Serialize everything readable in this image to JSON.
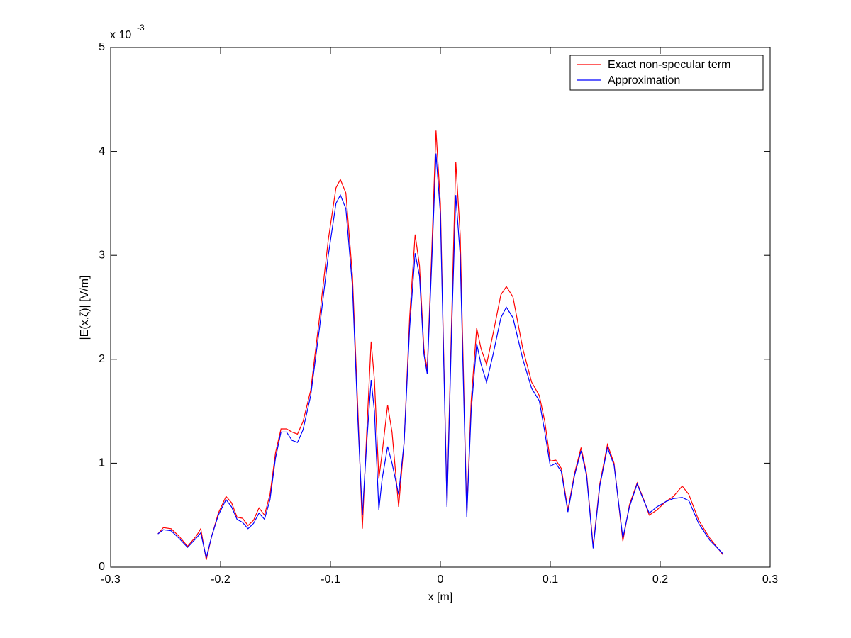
{
  "chart_data": {
    "type": "line",
    "xlabel": "x [m]",
    "ylabel": "|E(x,ζ)| [V/m]",
    "y_multiplier": "x 10",
    "y_exponent": "-3",
    "xlim": [
      -0.3,
      0.3
    ],
    "xticks": [
      -0.3,
      -0.2,
      -0.1,
      0,
      0.1,
      0.2,
      0.3
    ],
    "ylim": [
      0,
      5
    ],
    "yticks": [
      0,
      1,
      2,
      3,
      4,
      5
    ],
    "grid": false,
    "legend": "upper right",
    "x": [
      -0.257,
      -0.252,
      -0.245,
      -0.238,
      -0.23,
      -0.222,
      -0.218,
      -0.213,
      -0.208,
      -0.202,
      -0.195,
      -0.19,
      -0.185,
      -0.18,
      -0.175,
      -0.17,
      -0.165,
      -0.16,
      -0.155,
      -0.15,
      -0.145,
      -0.14,
      -0.135,
      -0.13,
      -0.125,
      -0.118,
      -0.11,
      -0.102,
      -0.095,
      -0.091,
      -0.086,
      -0.08,
      -0.075,
      -0.071,
      -0.067,
      -0.063,
      -0.06,
      -0.056,
      -0.053,
      -0.048,
      -0.044,
      -0.038,
      -0.033,
      -0.028,
      -0.023,
      -0.019,
      -0.015,
      -0.012,
      -0.008,
      -0.004,
      0,
      0.006,
      0.01,
      0.014,
      0.018,
      0.024,
      0.028,
      0.033,
      0.037,
      0.042,
      0.048,
      0.055,
      0.06,
      0.066,
      0.075,
      0.083,
      0.09,
      0.095,
      0.1,
      0.105,
      0.11,
      0.116,
      0.122,
      0.128,
      0.133,
      0.139,
      0.145,
      0.152,
      0.158,
      0.166,
      0.172,
      0.179,
      0.185,
      0.19,
      0.197,
      0.205,
      0.212,
      0.22,
      0.226,
      0.235,
      0.245,
      0.257
    ],
    "series": [
      {
        "name": "Exact non-specular term",
        "color": "#ff0000",
        "values": [
          0.32,
          0.38,
          0.37,
          0.3,
          0.2,
          0.3,
          0.37,
          0.07,
          0.3,
          0.52,
          0.68,
          0.62,
          0.48,
          0.47,
          0.4,
          0.45,
          0.57,
          0.5,
          0.7,
          1.1,
          1.33,
          1.33,
          1.3,
          1.28,
          1.4,
          1.7,
          2.4,
          3.15,
          3.65,
          3.73,
          3.6,
          2.8,
          1.5,
          0.37,
          1.3,
          2.17,
          1.8,
          0.85,
          1.1,
          1.56,
          1.3,
          0.58,
          1.2,
          2.4,
          3.2,
          2.9,
          2.1,
          1.9,
          3.0,
          4.2,
          3.5,
          0.6,
          2.3,
          3.9,
          3.2,
          0.5,
          1.6,
          2.3,
          2.1,
          1.95,
          2.25,
          2.62,
          2.7,
          2.6,
          2.1,
          1.78,
          1.65,
          1.4,
          1.02,
          1.03,
          0.95,
          0.55,
          0.9,
          1.15,
          0.9,
          0.2,
          0.8,
          1.18,
          1.0,
          0.25,
          0.6,
          0.81,
          0.65,
          0.5,
          0.55,
          0.63,
          0.68,
          0.78,
          0.7,
          0.45,
          0.28,
          0.12
        ]
      },
      {
        "name": "Approximation",
        "color": "#0000ff",
        "values": [
          0.32,
          0.36,
          0.35,
          0.28,
          0.19,
          0.28,
          0.33,
          0.09,
          0.3,
          0.5,
          0.65,
          0.58,
          0.46,
          0.43,
          0.37,
          0.42,
          0.52,
          0.46,
          0.65,
          1.05,
          1.3,
          1.3,
          1.22,
          1.2,
          1.32,
          1.65,
          2.3,
          3.0,
          3.5,
          3.58,
          3.45,
          2.7,
          1.4,
          0.5,
          1.2,
          1.8,
          1.5,
          0.55,
          0.85,
          1.16,
          1.0,
          0.7,
          1.2,
          2.3,
          3.02,
          2.8,
          2.05,
          1.86,
          2.9,
          3.98,
          3.4,
          0.58,
          2.2,
          3.58,
          3.0,
          0.48,
          1.5,
          2.15,
          1.95,
          1.78,
          2.05,
          2.4,
          2.5,
          2.4,
          2.0,
          1.72,
          1.6,
          1.3,
          0.97,
          1.0,
          0.92,
          0.53,
          0.88,
          1.12,
          0.88,
          0.18,
          0.78,
          1.15,
          0.98,
          0.28,
          0.58,
          0.8,
          0.64,
          0.52,
          0.58,
          0.63,
          0.66,
          0.67,
          0.64,
          0.42,
          0.26,
          0.13
        ]
      }
    ]
  }
}
